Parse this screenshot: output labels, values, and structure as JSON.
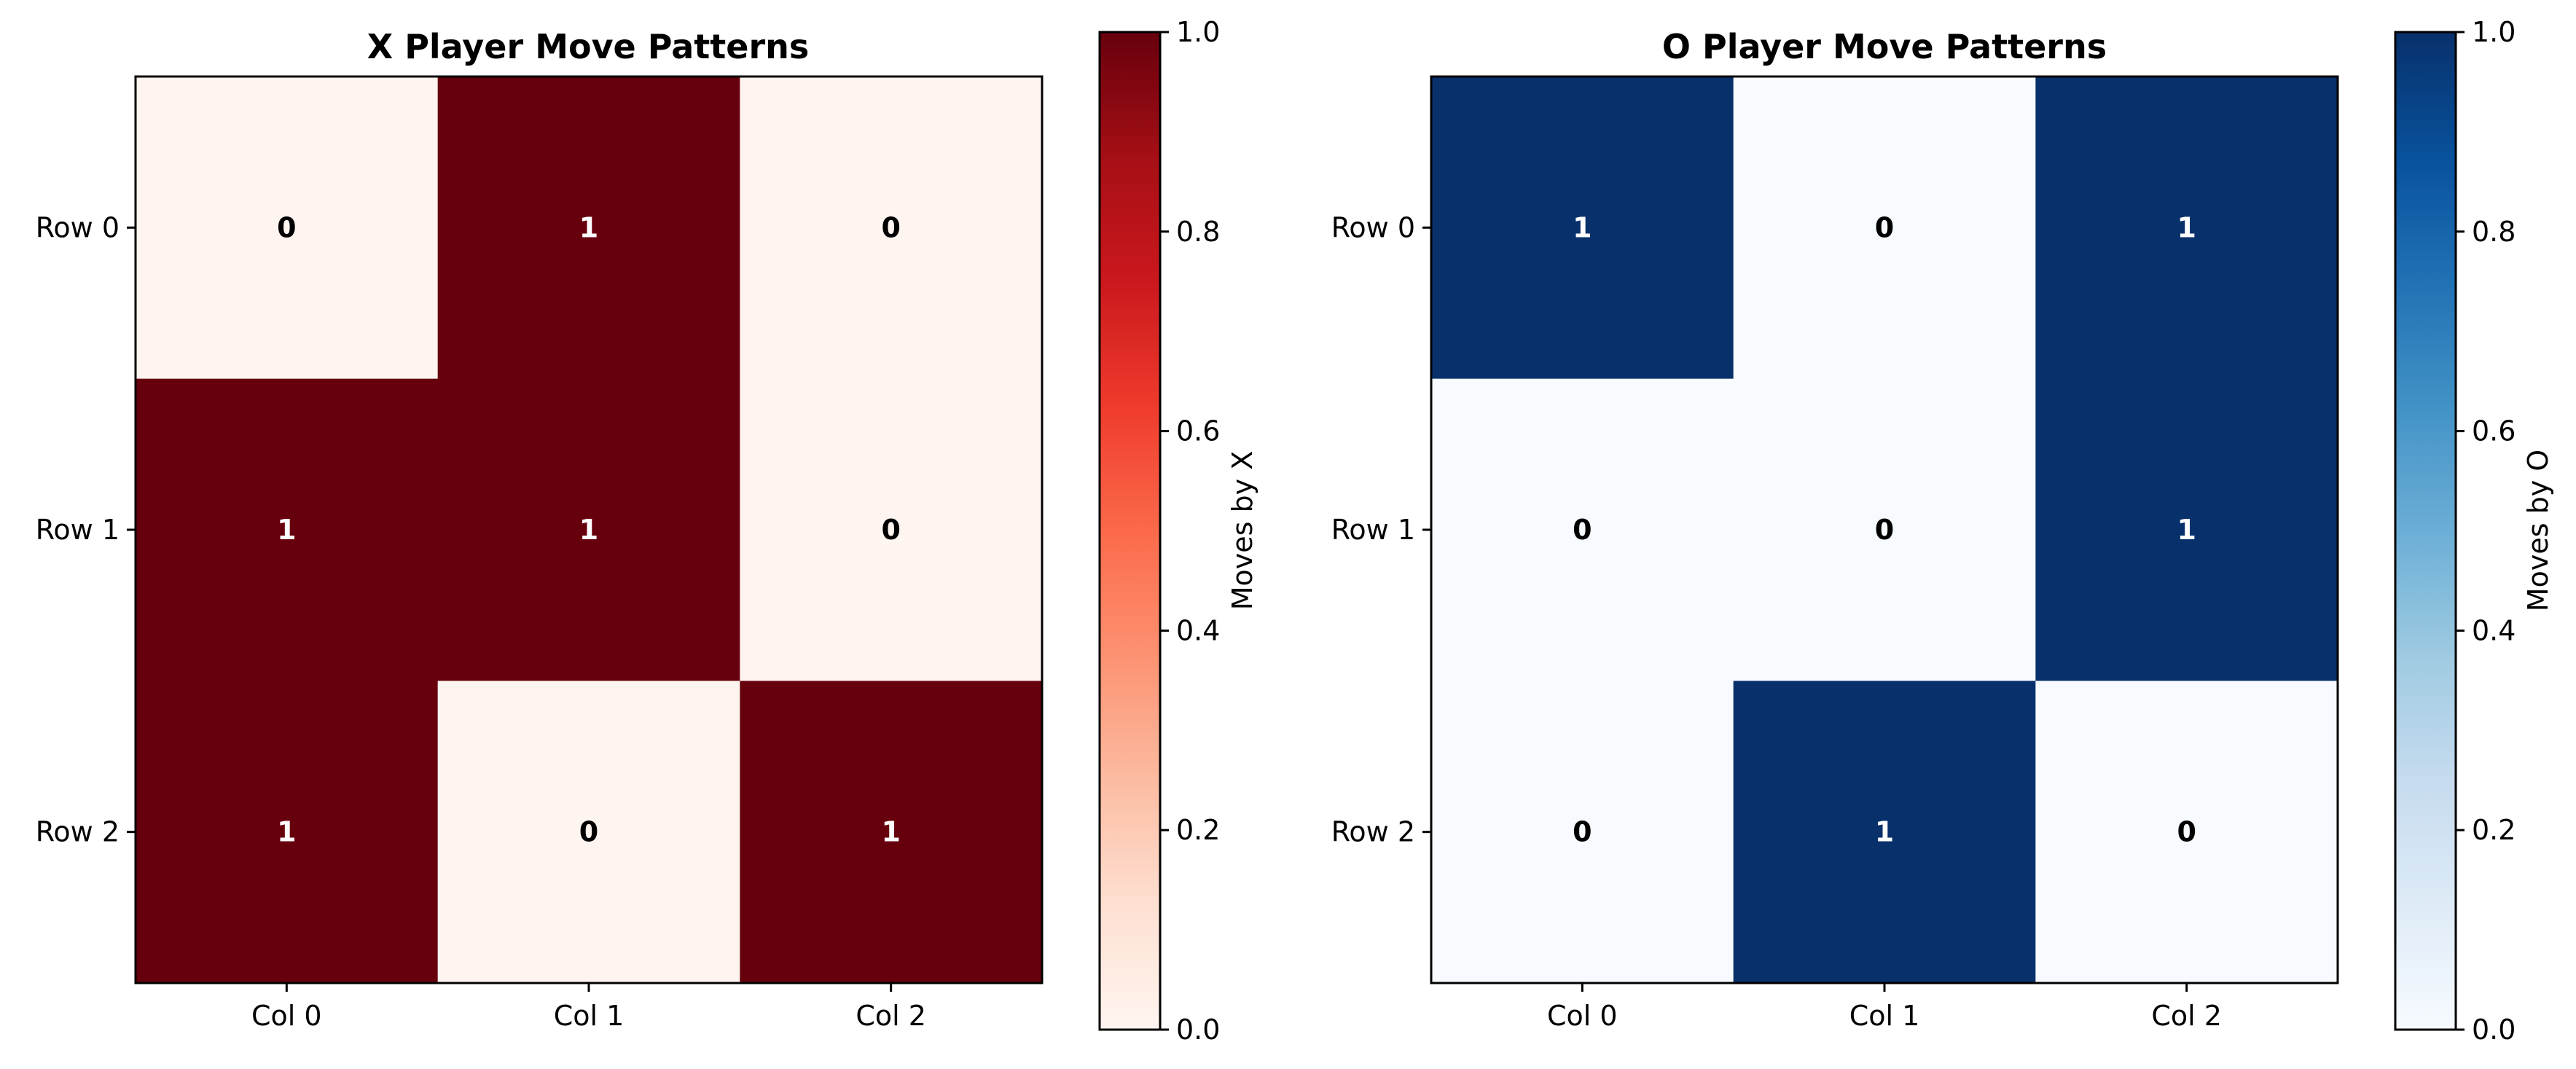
{
  "chart_data": [
    {
      "type": "heatmap",
      "title": "X Player Move Patterns",
      "x_categories": [
        "Col 0",
        "Col 1",
        "Col 2"
      ],
      "y_categories": [
        "Row 0",
        "Row 1",
        "Row 2"
      ],
      "values": [
        [
          0,
          1,
          0
        ],
        [
          1,
          1,
          0
        ],
        [
          1,
          0,
          1
        ]
      ],
      "colormap": "Reds",
      "low_color": "#fff5f0",
      "high_color": "#67000d",
      "colorbar": {
        "label": "Moves by X",
        "range": [
          0.0,
          1.0
        ],
        "ticks": [
          "0.0",
          "0.2",
          "0.4",
          "0.6",
          "0.8",
          "1.0"
        ]
      }
    },
    {
      "type": "heatmap",
      "title": "O Player Move Patterns",
      "x_categories": [
        "Col 0",
        "Col 1",
        "Col 2"
      ],
      "y_categories": [
        "Row 0",
        "Row 1",
        "Row 2"
      ],
      "values": [
        [
          1,
          0,
          1
        ],
        [
          0,
          0,
          1
        ],
        [
          0,
          1,
          0
        ]
      ],
      "colormap": "Blues",
      "low_color": "#f7fbff",
      "high_color": "#08306b",
      "colorbar": {
        "label": "Moves by O",
        "range": [
          0.0,
          1.0
        ],
        "ticks": [
          "0.0",
          "0.2",
          "0.4",
          "0.6",
          "0.8",
          "1.0"
        ]
      }
    }
  ]
}
